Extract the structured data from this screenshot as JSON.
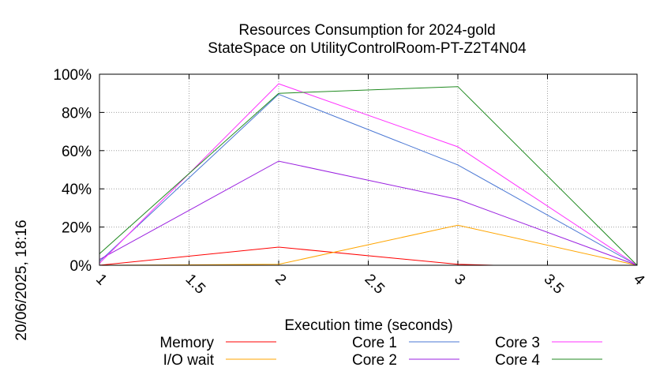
{
  "chart_data": {
    "type": "line",
    "title": "Resources Consumption for 2024-gold",
    "subtitle": "StateSpace on UtilityControlRoom-PT-Z2T4N04",
    "xlabel": "Execution time (seconds)",
    "ylabel": "",
    "side_label": "20/06/2025, 18:16",
    "xlim": [
      1,
      4
    ],
    "ylim": [
      0,
      100
    ],
    "x_ticks": [
      "1",
      "1.5",
      "2",
      "2.5",
      "3",
      "3.5",
      "4"
    ],
    "x_tick_values": [
      1,
      1.5,
      2,
      2.5,
      3,
      3.5,
      4
    ],
    "y_ticks": [
      "0%",
      "20%",
      "40%",
      "60%",
      "80%",
      "100%"
    ],
    "y_tick_values": [
      0,
      20,
      40,
      60,
      80,
      100
    ],
    "grid": true,
    "legend_position": "bottom",
    "series": [
      {
        "name": "Memory",
        "color": "#ff0000",
        "x": [
          1,
          2,
          3,
          3.2
        ],
        "values": [
          0,
          9.5,
          0.5,
          0
        ]
      },
      {
        "name": "I/O wait",
        "color": "#ffa500",
        "x": [
          1,
          2,
          3,
          4
        ],
        "values": [
          0,
          0.5,
          21,
          0
        ]
      },
      {
        "name": "Core 1",
        "color": "#4a77d4",
        "x": [
          1,
          2,
          3,
          4
        ],
        "values": [
          2,
          89.5,
          52.5,
          0
        ]
      },
      {
        "name": "Core 2",
        "color": "#9a1fe0",
        "x": [
          1,
          2,
          3,
          4
        ],
        "values": [
          3,
          54.5,
          34.5,
          0
        ]
      },
      {
        "name": "Core 3",
        "color": "#ff30ff",
        "x": [
          1,
          2,
          3,
          4
        ],
        "values": [
          1,
          95,
          62,
          0
        ]
      },
      {
        "name": "Core 4",
        "color": "#208a20",
        "x": [
          1,
          2,
          3,
          4
        ],
        "values": [
          6,
          90,
          93.5,
          0
        ]
      }
    ]
  }
}
